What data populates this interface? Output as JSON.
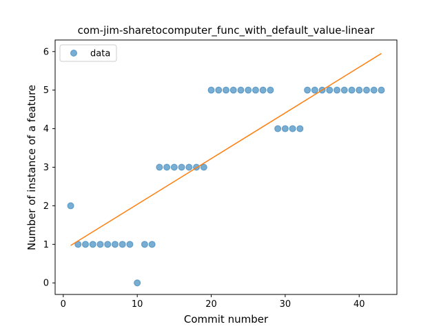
{
  "chart_data": {
    "type": "scatter",
    "title": "com-jim-sharetocomputer_func_with_default_value-linear",
    "xlabel": "Commit number",
    "ylabel": "Number of instance of a feature",
    "xlim": [
      -1.1,
      45.1
    ],
    "ylim": [
      -0.3,
      6.3
    ],
    "xticks": [
      0,
      10,
      20,
      30,
      40
    ],
    "yticks": [
      0,
      1,
      2,
      3,
      4,
      5,
      6
    ],
    "grid": false,
    "legend_position": "upper-left",
    "series": [
      {
        "name": "data",
        "kind": "scatter",
        "color": "#1f77b4",
        "x": [
          1,
          2,
          3,
          4,
          5,
          6,
          7,
          8,
          9,
          10,
          11,
          12,
          13,
          14,
          15,
          16,
          17,
          18,
          19,
          20,
          21,
          22,
          23,
          24,
          25,
          26,
          27,
          28,
          29,
          30,
          31,
          32,
          33,
          34,
          35,
          36,
          37,
          38,
          39,
          40,
          41,
          42,
          43
        ],
        "y": [
          2,
          1,
          1,
          1,
          1,
          1,
          1,
          1,
          1,
          0,
          1,
          1,
          3,
          3,
          3,
          3,
          3,
          3,
          3,
          5,
          5,
          5,
          5,
          5,
          5,
          5,
          5,
          5,
          4,
          4,
          4,
          4,
          5,
          5,
          5,
          5,
          5,
          5,
          5,
          5,
          5,
          5,
          5
        ]
      },
      {
        "kind": "line",
        "color": "#ff7f0e",
        "x": [
          1,
          43
        ],
        "y": [
          0.97,
          5.95
        ]
      }
    ]
  }
}
